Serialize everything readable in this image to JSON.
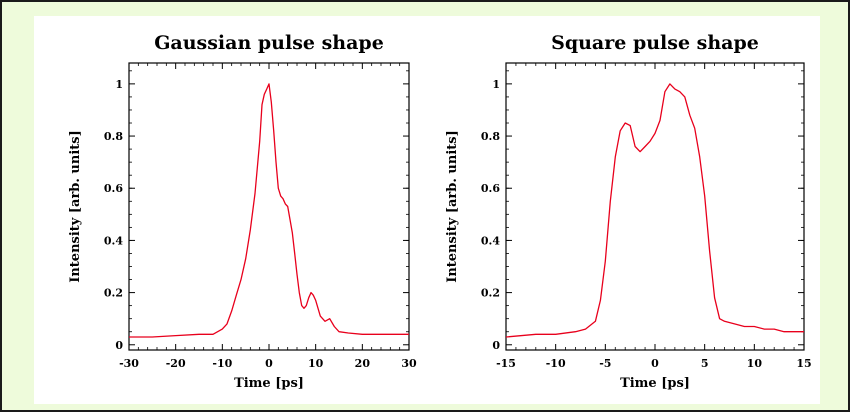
{
  "chart_data": [
    {
      "type": "line",
      "title": "Gaussian pulse shape",
      "xlabel": "Time [ps]",
      "ylabel": "Intensity [arb. units]",
      "xlim": [
        -30,
        30
      ],
      "ylim": [
        -0.02,
        1.08
      ],
      "xticks": [
        -30,
        -20,
        -10,
        0,
        10,
        20,
        30
      ],
      "xtick_labels": [
        "-30",
        "-20",
        "-10",
        "0",
        "10",
        "20",
        "30"
      ],
      "yticks": [
        0,
        0.2,
        0.4,
        0.6,
        0.8,
        1
      ],
      "ytick_labels": [
        "0",
        "0.2",
        "0.4",
        "0.6",
        "0.8",
        "1"
      ],
      "color": "#e8001c",
      "grid": false,
      "x": [
        -30,
        -25,
        -20,
        -15,
        -12,
        -10,
        -9,
        -8,
        -7,
        -6,
        -5,
        -4,
        -3,
        -2,
        -1.5,
        -1,
        -0.5,
        0,
        0.5,
        1,
        1.5,
        2,
        2.5,
        3,
        3.5,
        4,
        4.5,
        5,
        5.5,
        6,
        6.5,
        7,
        7.5,
        8,
        8.5,
        9,
        9.5,
        10,
        11,
        12,
        13,
        14,
        15,
        17,
        20,
        25,
        30
      ],
      "y": [
        0.03,
        0.03,
        0.035,
        0.04,
        0.04,
        0.06,
        0.08,
        0.13,
        0.19,
        0.25,
        0.33,
        0.44,
        0.58,
        0.78,
        0.92,
        0.96,
        0.98,
        1.0,
        0.93,
        0.82,
        0.7,
        0.6,
        0.57,
        0.56,
        0.54,
        0.53,
        0.48,
        0.43,
        0.35,
        0.27,
        0.2,
        0.15,
        0.14,
        0.15,
        0.18,
        0.2,
        0.19,
        0.17,
        0.11,
        0.09,
        0.1,
        0.07,
        0.05,
        0.045,
        0.04,
        0.04,
        0.04
      ]
    },
    {
      "type": "line",
      "title": "Square pulse shape",
      "xlabel": "Time [ps]",
      "ylabel": "Intensity [arb. units]",
      "xlim": [
        -15,
        15
      ],
      "ylim": [
        -0.02,
        1.08
      ],
      "xticks": [
        -15,
        -10,
        -5,
        0,
        5,
        10,
        15
      ],
      "xtick_labels": [
        "-15",
        "-10",
        "-5",
        "0",
        "5",
        "10",
        "15"
      ],
      "yticks": [
        0,
        0.2,
        0.4,
        0.6,
        0.8,
        1
      ],
      "ytick_labels": [
        "0",
        "0.2",
        "0.4",
        "0.6",
        "0.8",
        "1"
      ],
      "color": "#e8001c",
      "grid": false,
      "x": [
        -15,
        -12,
        -10,
        -8,
        -7,
        -6,
        -5.5,
        -5,
        -4.5,
        -4,
        -3.5,
        -3,
        -2.5,
        -2,
        -1.5,
        -1,
        -0.5,
        0,
        0.5,
        1,
        1.5,
        2,
        2.5,
        3,
        3.5,
        4,
        4.5,
        5,
        5.5,
        6,
        6.5,
        7,
        8,
        9,
        10,
        11,
        12,
        13,
        14,
        15
      ],
      "y": [
        0.03,
        0.04,
        0.04,
        0.05,
        0.06,
        0.09,
        0.17,
        0.32,
        0.55,
        0.72,
        0.82,
        0.85,
        0.84,
        0.76,
        0.74,
        0.76,
        0.78,
        0.81,
        0.86,
        0.97,
        1.0,
        0.98,
        0.97,
        0.95,
        0.88,
        0.83,
        0.72,
        0.57,
        0.36,
        0.18,
        0.1,
        0.09,
        0.08,
        0.07,
        0.07,
        0.06,
        0.06,
        0.05,
        0.05,
        0.05
      ]
    }
  ]
}
